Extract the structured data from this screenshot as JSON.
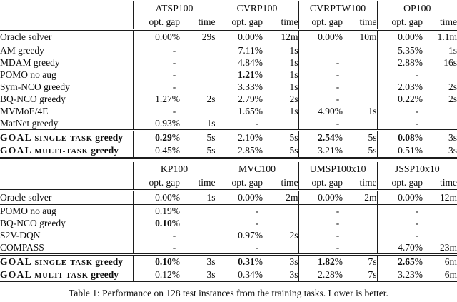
{
  "caption": "Table 1: Performance on 128 test instances from the training tasks. Lower is better.",
  "sub_headers": {
    "gap": "opt. gap",
    "time": "time"
  },
  "tables": [
    {
      "columns": [
        "ATSP100",
        "CVRP100",
        "CVRPTW100",
        "OP100"
      ],
      "rows": [
        {
          "label": "Oracle solver",
          "type": "oracle",
          "cells": [
            {
              "gap": "0.00%",
              "time": "29s"
            },
            {
              "gap": "0.00%",
              "time": "12m"
            },
            {
              "gap": "0.00%",
              "time": "10m"
            },
            {
              "gap": "0.00%",
              "time": "1.1m"
            }
          ]
        },
        {
          "label": "AM greedy",
          "type": "body",
          "cells": [
            {
              "dash": "-"
            },
            {
              "gap": "7.11%",
              "time": "1s"
            },
            {
              "blank": true
            },
            {
              "gap": "5.35%",
              "time": "1s"
            }
          ]
        },
        {
          "label": "MDAM greedy",
          "type": "body",
          "cells": [
            {
              "dash": "-"
            },
            {
              "gap": "4.84%",
              "time": "1s"
            },
            {
              "dash": "-"
            },
            {
              "gap": "2.88%",
              "time": "16s"
            }
          ]
        },
        {
          "label": "POMO no aug",
          "type": "body",
          "cells": [
            {
              "dash": "-"
            },
            {
              "gap": "1.21%",
              "time": "1s",
              "bold": true
            },
            {
              "dash": "-"
            },
            {
              "dash": "-"
            }
          ]
        },
        {
          "label": "Sym-NCO greedy",
          "type": "body",
          "cells": [
            {
              "dash": "-"
            },
            {
              "gap": "3.33%",
              "time": "1s"
            },
            {
              "dash": "-"
            },
            {
              "gap": "2.03%",
              "time": "2s"
            }
          ]
        },
        {
          "label": "BQ-NCO greedy",
          "type": "body",
          "cells": [
            {
              "gap": "1.27%",
              "time": "2s"
            },
            {
              "gap": "2.79%",
              "time": "2s"
            },
            {
              "dash": "-"
            },
            {
              "gap": "0.22%",
              "time": "2s"
            }
          ]
        },
        {
          "label": "MVMoE/4E",
          "type": "body",
          "cells": [
            {
              "dash": "-"
            },
            {
              "gap": "1.65%",
              "time": "1s"
            },
            {
              "gap": "4.90%",
              "time": "1s"
            },
            {
              "dash": "-"
            }
          ]
        },
        {
          "label": "MatNet greedy",
          "type": "body",
          "cells": [
            {
              "gap": "0.93%",
              "time": "1s"
            },
            {
              "dash": "-"
            },
            {
              "dash": "-"
            },
            {
              "dash": "-"
            }
          ]
        },
        {
          "label_prefix": "GOAL",
          "label_caps": "SINGLE-TASK",
          "label_suffix": "greedy",
          "type": "goal",
          "cells": [
            {
              "gap": "0.29%",
              "time": "5s",
              "bold": true
            },
            {
              "gap": "2.10%",
              "time": "5s"
            },
            {
              "gap": "2.54%",
              "time": "5s",
              "bold": true
            },
            {
              "gap": "0.08%",
              "time": "3s",
              "bold": true
            }
          ]
        },
        {
          "label_prefix": "GOAL",
          "label_caps": "MULTI-TASK",
          "label_suffix": "greedy",
          "type": "goal",
          "cells": [
            {
              "gap": "0.45%",
              "time": "5s"
            },
            {
              "gap": "2.85%",
              "time": "5s"
            },
            {
              "gap": "3.21%",
              "time": "5s"
            },
            {
              "gap": "0.51%",
              "time": "3s"
            }
          ]
        }
      ]
    },
    {
      "columns": [
        "KP100",
        "MVC100",
        "UMSP100x10",
        "JSSP10x10"
      ],
      "rows": [
        {
          "label": "Oracle solver",
          "type": "oracle",
          "cells": [
            {
              "gap": "0.00%",
              "time": "1s"
            },
            {
              "gap": "0.00%",
              "time": "2m"
            },
            {
              "gap": "0.00%",
              "time": "2m"
            },
            {
              "gap": "0.00%",
              "time": "12m"
            }
          ]
        },
        {
          "label": "POMO no aug",
          "type": "body",
          "cells": [
            {
              "gap": "0.19%",
              "time": ""
            },
            {
              "dash": "-"
            },
            {
              "dash": "-"
            },
            {
              "dash": "-"
            }
          ]
        },
        {
          "label": "BQ-NCO greedy",
          "type": "body",
          "cells": [
            {
              "gap": "0.10%",
              "time": "",
              "bold": true
            },
            {
              "dash": "-"
            },
            {
              "dash": "-"
            },
            {
              "dash": "-"
            }
          ]
        },
        {
          "label": "S2V-DQN",
          "type": "body",
          "cells": [
            {
              "dash": "-"
            },
            {
              "gap": "0.97%",
              "time": "2s"
            },
            {
              "dash": "-"
            },
            {
              "dash": "-"
            }
          ]
        },
        {
          "label": "COMPASS",
          "type": "body",
          "cells": [
            {
              "dash": "-"
            },
            {
              "dash": "-"
            },
            {
              "dash": "-"
            },
            {
              "gap": "4.70%",
              "time": "23m"
            }
          ]
        },
        {
          "label_prefix": "GOAL",
          "label_caps": "SINGLE-TASK",
          "label_suffix": "greedy",
          "type": "goal",
          "cells": [
            {
              "gap": "0.10%",
              "time": "3s",
              "bold": true
            },
            {
              "gap": "0.31%",
              "time": "3s",
              "bold": true
            },
            {
              "gap": "1.82%",
              "time": "7s",
              "bold": true
            },
            {
              "gap": "2.65%",
              "time": "6m",
              "bold": true
            }
          ]
        },
        {
          "label_prefix": "GOAL",
          "label_caps": "MULTI-TASK",
          "label_suffix": "greedy",
          "type": "goal",
          "cells": [
            {
              "gap": "0.12%",
              "time": "3s"
            },
            {
              "gap": "0.34%",
              "time": "3s"
            },
            {
              "gap": "2.28%",
              "time": "7s"
            },
            {
              "gap": "3.23%",
              "time": "6m"
            }
          ]
        }
      ]
    }
  ]
}
